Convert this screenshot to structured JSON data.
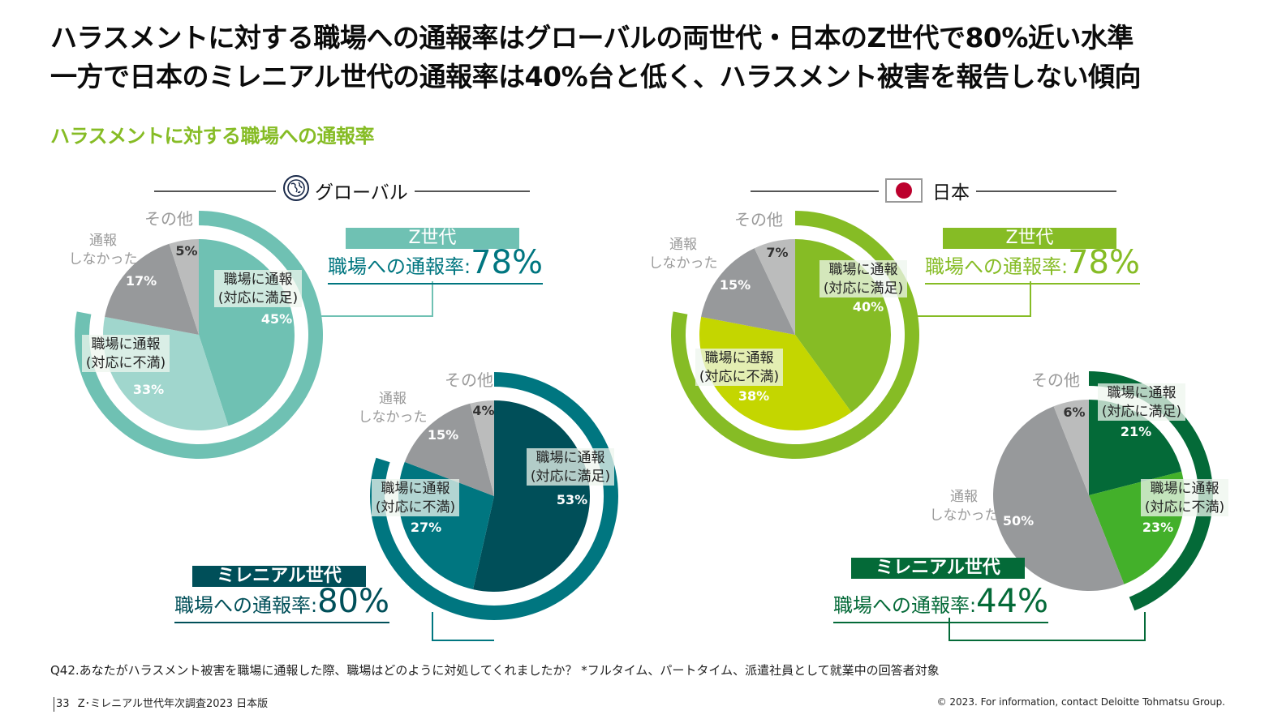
{
  "headline": {
    "line1": "ハラスメントに対する職場への通報率はグローバルの両世代・日本のZ世代で80%近い水準",
    "line2": "一方で日本のミレニアル世代の通報率は40%台と低く、ハラスメント被害を報告しない傾向"
  },
  "subtitle": "ハラスメントに対する職場への通報率",
  "regions": {
    "global": {
      "label": "グローバル",
      "icon": "globe-icon"
    },
    "japan": {
      "label": "日本",
      "icon": "japan-flag-icon"
    }
  },
  "rate_prefix": "職場への通報率:",
  "panels": {
    "global_z": {
      "generation": "Z世代",
      "rate": "78%"
    },
    "global_m": {
      "generation": "ミレニアル世代",
      "rate": "80%"
    },
    "japan_z": {
      "generation": "Z世代",
      "rate": "78%"
    },
    "japan_m": {
      "generation": "ミレニアル世代",
      "rate": "44%"
    }
  },
  "chart_data": [
    {
      "type": "pie",
      "title": "グローバル Z世代",
      "categories": [
        "職場に通報(対応に満足)",
        "職場に通報(対応に不満)",
        "通報しなかった",
        "その他"
      ],
      "values": [
        45,
        33,
        17,
        5
      ],
      "colors": [
        "#6fc1b3",
        "#a0d6cd",
        "#97999b",
        "#bbbcbc"
      ],
      "ring_value": 78,
      "ring_color": "#6fc1b3"
    },
    {
      "type": "pie",
      "title": "グローバル ミレニアル世代",
      "categories": [
        "職場に通報(対応に満足)",
        "職場に通報(対応に不満)",
        "通報しなかった",
        "その他"
      ],
      "values": [
        53,
        27,
        15,
        4
      ],
      "colors": [
        "#004f59",
        "#007680",
        "#97999b",
        "#bbbcbc"
      ],
      "ring_value": 80,
      "ring_color": "#007680"
    },
    {
      "type": "pie",
      "title": "日本 Z世代",
      "categories": [
        "職場に通報(対応に満足)",
        "職場に通報(対応に不満)",
        "通報しなかった",
        "その他"
      ],
      "values": [
        40,
        38,
        15,
        7
      ],
      "colors": [
        "#86bc25",
        "#c4d600",
        "#97999b",
        "#bbbcbc"
      ],
      "ring_value": 78,
      "ring_color": "#86bc25"
    },
    {
      "type": "pie",
      "title": "日本 ミレニアル世代",
      "categories": [
        "職場に通報(対応に満足)",
        "職場に通報(対応に不満)",
        "通報しなかった",
        "その他"
      ],
      "values": [
        21,
        23,
        50,
        6
      ],
      "colors": [
        "#046a38",
        "#43b02a",
        "#97999b",
        "#bbbcbc"
      ],
      "ring_value": 44,
      "ring_color": "#046a38"
    }
  ],
  "labels": {
    "satisfied_line1": "職場に通報",
    "satisfied_line2": "(対応に満足)",
    "dissatisfied_line1": "職場に通報",
    "dissatisfied_line2": "(対応に不満)",
    "not_reported_line1": "通報",
    "not_reported_line2": "しなかった",
    "other": "その他"
  },
  "footnote": "Q42.あなたがハラスメント被害を職場に通報した際、職場はどのように対処してくれましたか？ *フルタイム、パートタイム、派遣社員として就業中の回答者対象",
  "footer": {
    "page": "33",
    "report": "Z･ミレニアル世代年次調査2023 日本版",
    "copyright": "© 2023. For information, contact Deloitte Tohmatsu Group."
  }
}
